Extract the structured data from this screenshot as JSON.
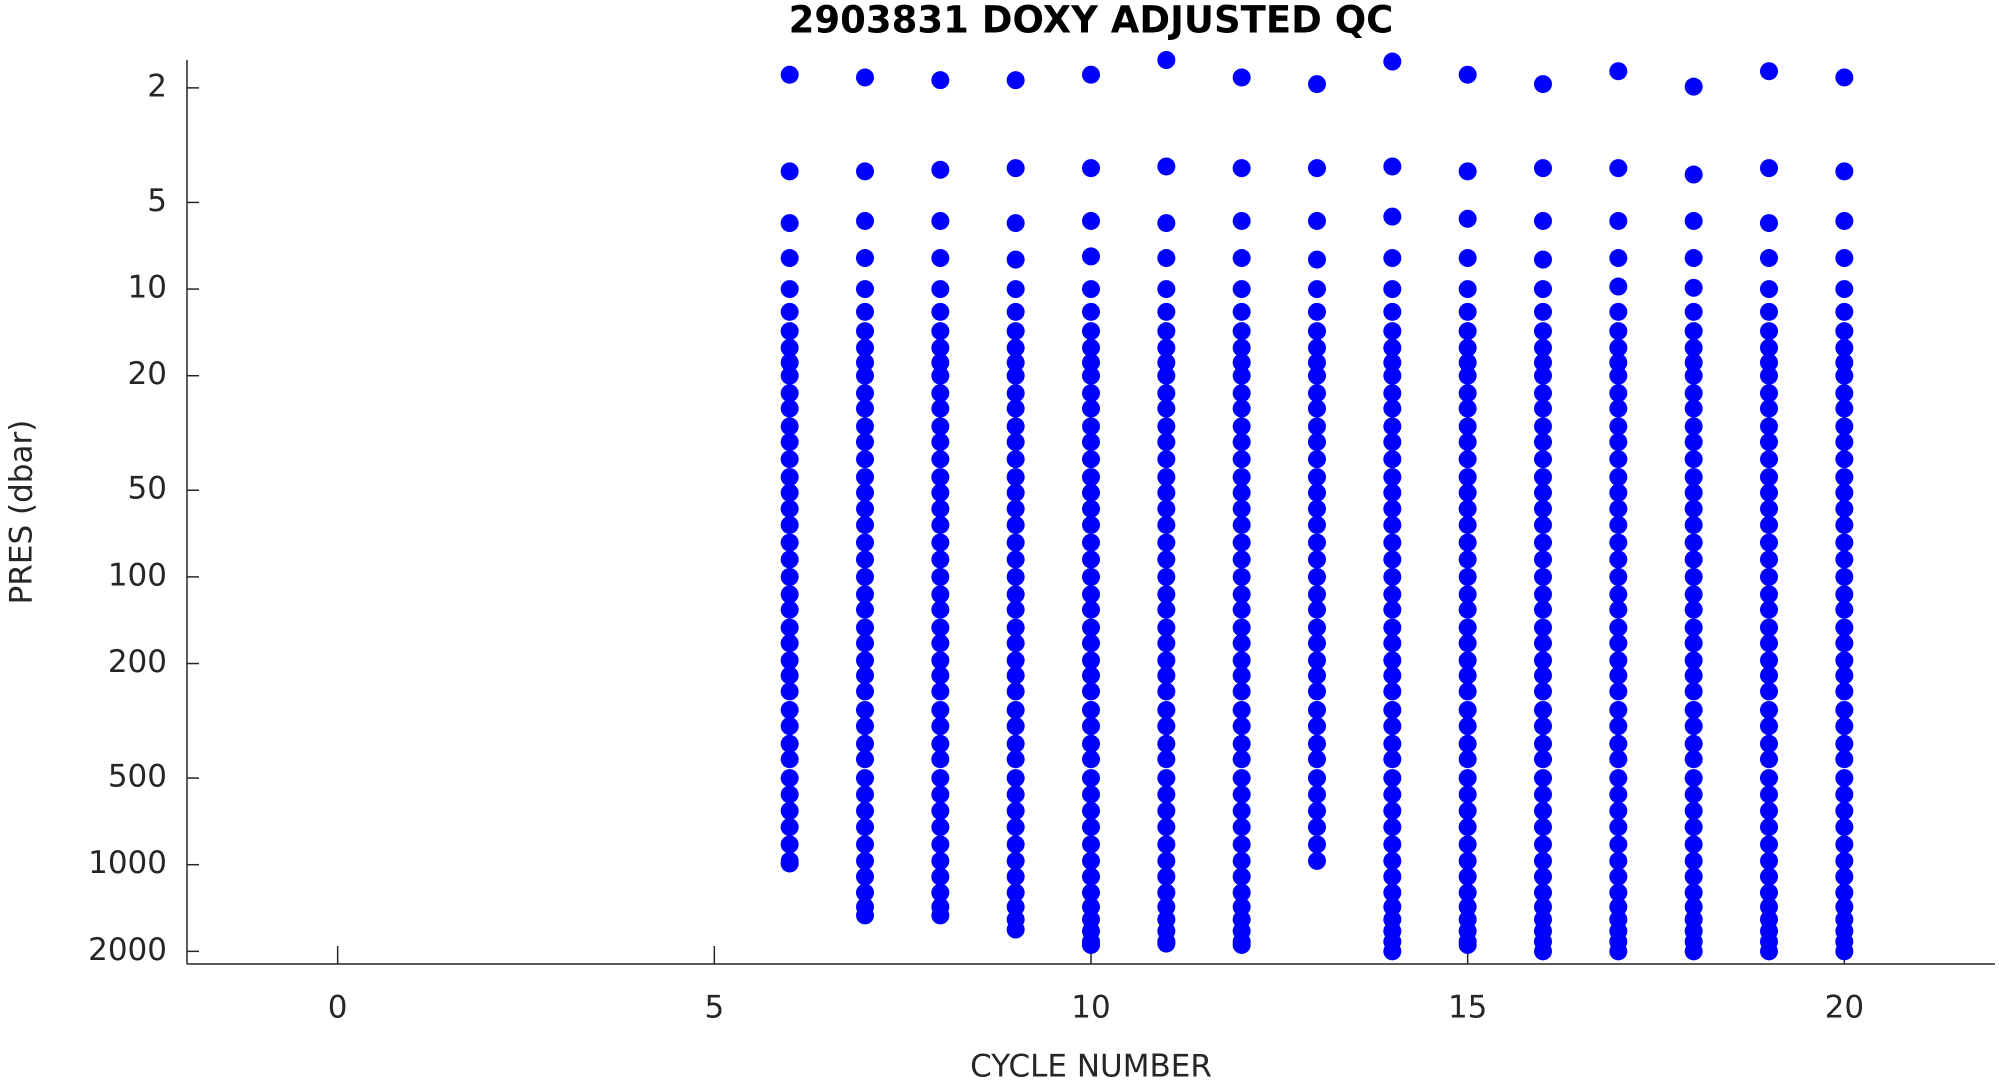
{
  "chart_data": {
    "type": "scatter",
    "title": "2903831  DOXY ADJUSTED QC",
    "x_label": "CYCLE NUMBER",
    "y_label": "PRES (dbar)",
    "xlim": [
      -2,
      22
    ],
    "xticks": [
      0,
      5,
      10,
      15,
      20
    ],
    "ylim": [
      1.6,
      2213
    ],
    "yticks": [
      2,
      5,
      10,
      20,
      50,
      100,
      200,
      500,
      1000,
      2000
    ],
    "y_scale": "log",
    "y_reversed": true,
    "color": "#0000ff",
    "profiles": [
      {
        "x": 6,
        "values": [
          1.8,
          3.9,
          5.9,
          7.8,
          10,
          12,
          14,
          16,
          18,
          20,
          23,
          26,
          30,
          34,
          39,
          45,
          51,
          58,
          66,
          76,
          87,
          100,
          115,
          130,
          150,
          170,
          195,
          220,
          250,
          290,
          330,
          380,
          430,
          500,
          570,
          650,
          740,
          850,
          970,
          990
        ]
      },
      {
        "x": 7,
        "values": [
          1.84,
          3.9,
          5.8,
          7.8,
          10,
          12,
          14,
          16,
          18,
          20,
          23,
          26,
          30,
          34,
          39,
          45,
          51,
          58,
          66,
          76,
          87,
          100,
          115,
          130,
          150,
          170,
          195,
          220,
          250,
          290,
          330,
          380,
          430,
          500,
          570,
          650,
          740,
          850,
          970,
          1100,
          1250,
          1400,
          1500
        ]
      },
      {
        "x": 8,
        "values": [
          1.88,
          3.85,
          5.8,
          7.8,
          10,
          12,
          14,
          16,
          18,
          20,
          23,
          26,
          30,
          34,
          39,
          45,
          51,
          58,
          66,
          76,
          87,
          100,
          115,
          130,
          150,
          170,
          195,
          220,
          250,
          290,
          330,
          380,
          430,
          500,
          570,
          650,
          740,
          850,
          970,
          1100,
          1250,
          1400,
          1500
        ]
      },
      {
        "x": 9,
        "values": [
          1.88,
          3.8,
          5.9,
          7.9,
          10,
          12,
          14,
          16,
          18,
          20,
          23,
          26,
          30,
          34,
          39,
          45,
          51,
          58,
          66,
          76,
          87,
          100,
          115,
          130,
          150,
          170,
          195,
          220,
          250,
          290,
          330,
          380,
          430,
          500,
          570,
          650,
          740,
          850,
          970,
          1100,
          1250,
          1400,
          1550,
          1680
        ]
      },
      {
        "x": 10,
        "values": [
          1.8,
          3.8,
          5.8,
          7.7,
          10,
          12,
          14,
          16,
          18,
          20,
          23,
          26,
          30,
          34,
          39,
          45,
          51,
          58,
          66,
          76,
          87,
          100,
          115,
          130,
          150,
          170,
          195,
          220,
          250,
          290,
          330,
          380,
          430,
          500,
          570,
          650,
          740,
          850,
          970,
          1100,
          1250,
          1400,
          1550,
          1700,
          1850,
          1900
        ]
      },
      {
        "x": 11,
        "values": [
          1.6,
          3.75,
          5.9,
          7.8,
          10,
          12,
          14,
          16,
          18,
          20,
          23,
          26,
          30,
          34,
          39,
          45,
          51,
          58,
          66,
          76,
          87,
          100,
          115,
          130,
          150,
          170,
          195,
          220,
          250,
          290,
          330,
          380,
          430,
          500,
          570,
          650,
          740,
          850,
          970,
          1100,
          1250,
          1400,
          1550,
          1700,
          1850,
          1880
        ]
      },
      {
        "x": 12,
        "values": [
          1.84,
          3.8,
          5.8,
          7.8,
          10,
          12,
          14,
          16,
          18,
          20,
          23,
          26,
          30,
          34,
          39,
          45,
          51,
          58,
          66,
          76,
          87,
          100,
          115,
          130,
          150,
          170,
          195,
          220,
          250,
          290,
          330,
          380,
          430,
          500,
          570,
          650,
          740,
          850,
          970,
          1100,
          1250,
          1400,
          1550,
          1700,
          1850,
          1900
        ]
      },
      {
        "x": 13,
        "values": [
          1.94,
          3.8,
          5.8,
          7.9,
          10,
          12,
          14,
          16,
          18,
          20,
          23,
          26,
          30,
          34,
          39,
          45,
          51,
          58,
          66,
          76,
          87,
          100,
          115,
          130,
          150,
          170,
          195,
          220,
          250,
          290,
          330,
          380,
          430,
          500,
          570,
          650,
          740,
          850,
          970
        ]
      },
      {
        "x": 14,
        "values": [
          1.62,
          3.75,
          5.6,
          7.8,
          10,
          12,
          14,
          16,
          18,
          20,
          23,
          26,
          30,
          34,
          39,
          45,
          51,
          58,
          66,
          76,
          87,
          100,
          115,
          130,
          150,
          170,
          195,
          220,
          250,
          290,
          330,
          380,
          430,
          500,
          570,
          650,
          740,
          850,
          970,
          1100,
          1250,
          1400,
          1550,
          1700,
          1850,
          2000
        ]
      },
      {
        "x": 15,
        "values": [
          1.8,
          3.9,
          5.7,
          7.8,
          10,
          12,
          14,
          16,
          18,
          20,
          23,
          26,
          30,
          34,
          39,
          45,
          51,
          58,
          66,
          76,
          87,
          100,
          115,
          130,
          150,
          170,
          195,
          220,
          250,
          290,
          330,
          380,
          430,
          500,
          570,
          650,
          740,
          850,
          970,
          1100,
          1250,
          1400,
          1550,
          1700,
          1850,
          1900
        ]
      },
      {
        "x": 16,
        "values": [
          1.94,
          3.8,
          5.8,
          7.9,
          10,
          12,
          14,
          16,
          18,
          20,
          23,
          26,
          30,
          34,
          39,
          45,
          51,
          58,
          66,
          76,
          87,
          100,
          115,
          130,
          150,
          170,
          195,
          220,
          250,
          290,
          330,
          380,
          430,
          500,
          570,
          650,
          740,
          850,
          970,
          1100,
          1250,
          1400,
          1550,
          1700,
          1850,
          2000
        ]
      },
      {
        "x": 17,
        "values": [
          1.75,
          3.8,
          5.8,
          7.8,
          9.8,
          12,
          14,
          16,
          18,
          20,
          23,
          26,
          30,
          34,
          39,
          45,
          51,
          58,
          66,
          76,
          87,
          100,
          115,
          130,
          150,
          170,
          195,
          220,
          250,
          290,
          330,
          380,
          430,
          500,
          570,
          650,
          740,
          850,
          970,
          1100,
          1250,
          1400,
          1550,
          1700,
          1850,
          2000
        ]
      },
      {
        "x": 18,
        "values": [
          1.98,
          4.0,
          5.8,
          7.8,
          9.9,
          12,
          14,
          16,
          18,
          20,
          23,
          26,
          30,
          34,
          39,
          45,
          51,
          58,
          66,
          76,
          87,
          100,
          115,
          130,
          150,
          170,
          195,
          220,
          250,
          290,
          330,
          380,
          430,
          500,
          570,
          650,
          740,
          850,
          970,
          1100,
          1250,
          1400,
          1550,
          1700,
          1850,
          2000
        ]
      },
      {
        "x": 19,
        "values": [
          1.75,
          3.8,
          5.9,
          7.8,
          10,
          12,
          14,
          16,
          18,
          20,
          23,
          26,
          30,
          34,
          39,
          45,
          51,
          58,
          66,
          76,
          87,
          100,
          115,
          130,
          150,
          170,
          195,
          220,
          250,
          290,
          330,
          380,
          430,
          500,
          570,
          650,
          740,
          850,
          970,
          1100,
          1250,
          1400,
          1550,
          1700,
          1850,
          2000
        ]
      },
      {
        "x": 20,
        "values": [
          1.84,
          3.9,
          5.8,
          7.8,
          10,
          12,
          14,
          16,
          18,
          20,
          23,
          26,
          30,
          34,
          39,
          45,
          51,
          58,
          66,
          76,
          87,
          100,
          115,
          130,
          150,
          170,
          195,
          220,
          250,
          290,
          330,
          380,
          430,
          500,
          570,
          650,
          740,
          850,
          970,
          1100,
          1250,
          1400,
          1550,
          1700,
          1850,
          2000
        ]
      }
    ]
  }
}
